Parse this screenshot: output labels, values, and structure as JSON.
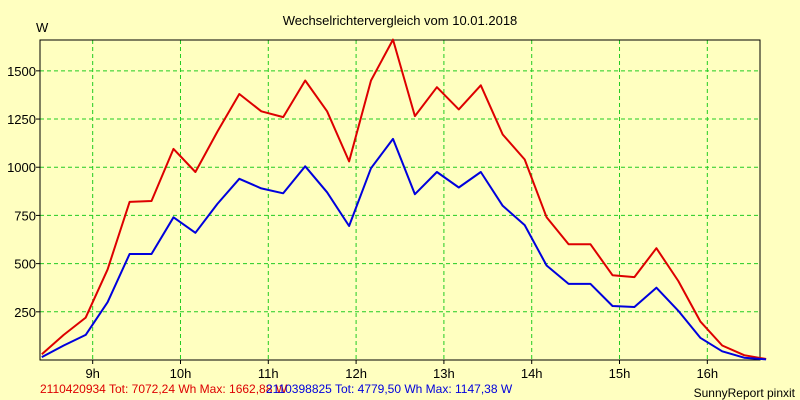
{
  "chart_data": {
    "type": "line",
    "title": "Wechselrichtervergleich vom 10.01.2018",
    "ylabel": "W",
    "xlabel": "",
    "xlim": [
      8.4,
      16.6
    ],
    "ylim": [
      0,
      1660
    ],
    "grid": true,
    "y_ticks": [
      250,
      500,
      750,
      1000,
      1250,
      1500
    ],
    "x_ticks": [
      {
        "value": 9,
        "label": "9h"
      },
      {
        "value": 10,
        "label": "10h"
      },
      {
        "value": 11,
        "label": "11h"
      },
      {
        "value": 12,
        "label": "12h"
      },
      {
        "value": 13,
        "label": "13h"
      },
      {
        "value": 14,
        "label": "14h"
      },
      {
        "value": 15,
        "label": "15h"
      },
      {
        "value": 16,
        "label": "16h"
      }
    ],
    "x": [
      8.42,
      8.67,
      8.92,
      9.17,
      9.42,
      9.67,
      9.92,
      10.17,
      10.42,
      10.67,
      10.92,
      11.17,
      11.42,
      11.67,
      11.92,
      12.17,
      12.42,
      12.67,
      12.92,
      13.17,
      13.42,
      13.67,
      13.92,
      14.17,
      14.42,
      14.67,
      14.92,
      15.17,
      15.42,
      15.67,
      15.92,
      16.17,
      16.42,
      16.67
    ],
    "series": [
      {
        "name": "2110420934",
        "color": "#dd0000",
        "values": [
          30,
          130,
          220,
          470,
          820,
          825,
          1095,
          975,
          1185,
          1380,
          1290,
          1260,
          1450,
          1290,
          1030,
          1450,
          1662,
          1265,
          1415,
          1300,
          1425,
          1170,
          1040,
          740,
          600,
          600,
          440,
          430,
          580,
          410,
          200,
          75,
          25,
          5
        ]
      },
      {
        "name": "2110398825",
        "color": "#0000dd",
        "values": [
          15,
          75,
          130,
          300,
          550,
          550,
          740,
          660,
          810,
          940,
          890,
          865,
          1005,
          870,
          695,
          995,
          1147,
          860,
          975,
          895,
          975,
          800,
          700,
          490,
          395,
          395,
          280,
          275,
          375,
          255,
          115,
          45,
          12,
          3
        ]
      }
    ],
    "footer": {
      "series1_text": "2110420934 Tot: 7072,24 Wh Max: 1662,88 W",
      "series2_text": "2110398825 Tot: 4779,50 Wh Max: 1147,38 W",
      "credit": "SunnyReport pinxit"
    }
  }
}
